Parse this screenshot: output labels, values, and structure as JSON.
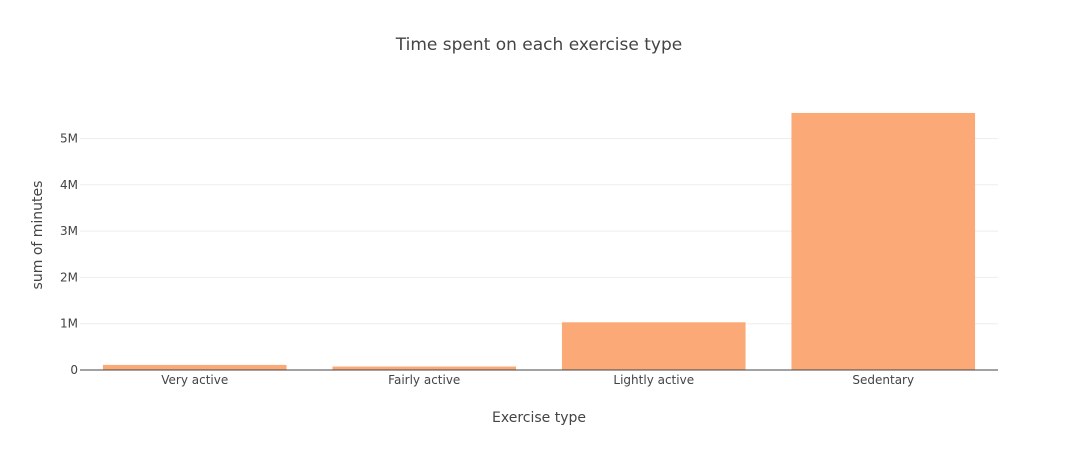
{
  "chart_data": {
    "type": "bar",
    "title": "Time spent on each exercise type",
    "xlabel": "Exercise type",
    "ylabel": "sum of minutes",
    "categories": [
      "Very active",
      "Fairly active",
      "Lightly active",
      "Sedentary"
    ],
    "values": [
      110000,
      75000,
      1030000,
      5550000
    ],
    "ylim": [
      0,
      5830000
    ],
    "yticks": [
      0,
      1000000,
      2000000,
      3000000,
      4000000,
      5000000
    ],
    "ytick_labels": [
      "0",
      "1M",
      "2M",
      "3M",
      "4M",
      "5M"
    ],
    "grid": true,
    "legend": "none",
    "bar_color": "#FAA977"
  }
}
